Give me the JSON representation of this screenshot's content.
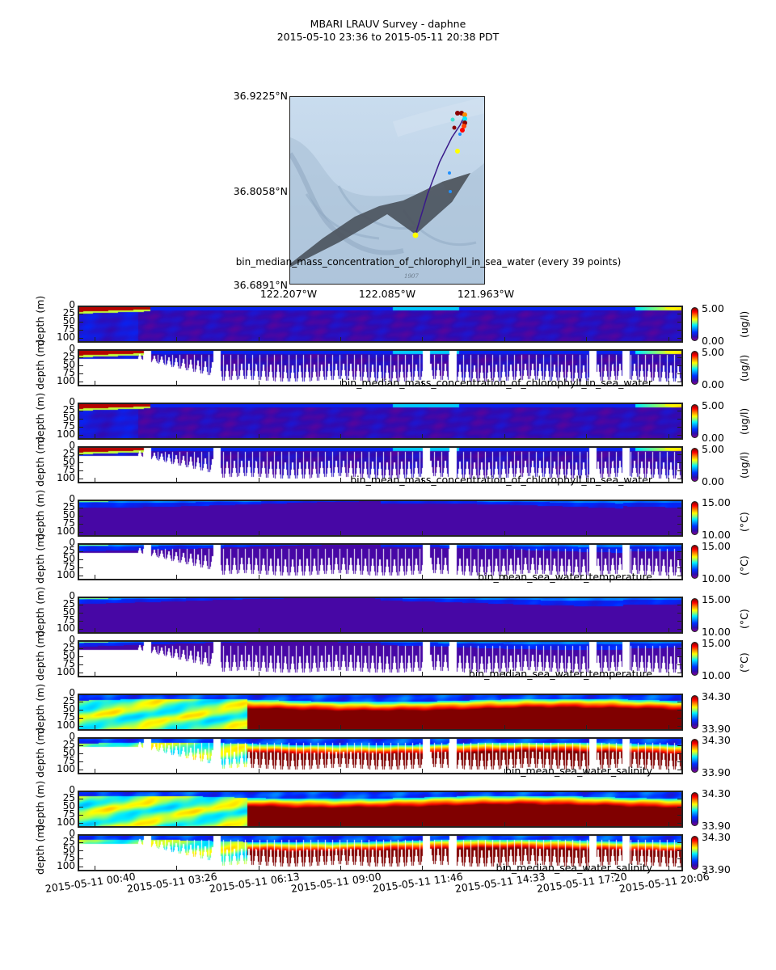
{
  "header": {
    "title": "MBARI LRAUV Survey - daphne",
    "subtitle": "2015-05-10 23:36  to  2015-05-11 20:38 PDT"
  },
  "map": {
    "lat_ticks": [
      "36.9225°N",
      "36.8058°N",
      "36.6891°N"
    ],
    "lon_ticks": [
      "122.207°W",
      "122.085°W",
      "121.963°W"
    ],
    "caption": "bin_median_mass_concentration_of_chlorophyll_in_sea_water (every 39 points)",
    "watermark": "1907",
    "colors": {
      "water": "#c5d9ec",
      "swath": "#4a525c",
      "track": "#3a1a8a"
    }
  },
  "chart_data": [
    {
      "type": "heatmap",
      "title": "",
      "variable": "bin_median_mass_concentration_of_chlorophyll_in_sea_water",
      "style": "gridded",
      "ylabel": "depth (m)",
      "yticks": [
        "0",
        "25",
        "50",
        "75",
        "100"
      ],
      "ylim": [
        0,
        115
      ],
      "colorbar": {
        "min": "0.00",
        "max": "5.00",
        "unit": "(ug/l)"
      },
      "colormap": "jet"
    },
    {
      "type": "heatmap",
      "title": "bin_median_mass_concentration_of_chlorophyll_in_sea_water",
      "variable": "bin_median_mass_concentration_of_chlorophyll_in_sea_water",
      "style": "profiles",
      "ylabel": "depth (m)",
      "yticks": [
        "0",
        "25",
        "50",
        "75",
        "100"
      ],
      "ylim": [
        0,
        115
      ],
      "colorbar": {
        "min": "0.00",
        "max": "5.00",
        "unit": "(ug/l)"
      },
      "colormap": "jet"
    },
    {
      "type": "heatmap",
      "title": "",
      "variable": "bin_mean_mass_concentration_of_chlorophyll_in_sea_water",
      "style": "gridded",
      "ylabel": "depth (m)",
      "yticks": [
        "0",
        "25",
        "50",
        "75",
        "100"
      ],
      "ylim": [
        0,
        115
      ],
      "colorbar": {
        "min": "0.00",
        "max": "5.00",
        "unit": "(ug/l)"
      },
      "colormap": "jet"
    },
    {
      "type": "heatmap",
      "title": "bin_mean_mass_concentration_of_chlorophyll_in_sea_water",
      "variable": "bin_mean_mass_concentration_of_chlorophyll_in_sea_water",
      "style": "profiles",
      "ylabel": "depth (m)",
      "yticks": [
        "0",
        "25",
        "50",
        "75",
        "100"
      ],
      "ylim": [
        0,
        115
      ],
      "colorbar": {
        "min": "0.00",
        "max": "5.00",
        "unit": "(ug/l)"
      },
      "colormap": "jet"
    },
    {
      "type": "heatmap",
      "title": "",
      "variable": "bin_mean_sea_water_temperature",
      "style": "gridded",
      "ylabel": "depth (m)",
      "yticks": [
        "0",
        "25",
        "50",
        "75",
        "100"
      ],
      "ylim": [
        0,
        115
      ],
      "colorbar": {
        "min": "10.00",
        "max": "15.00",
        "unit": "(°C)"
      },
      "colormap": "jet"
    },
    {
      "type": "heatmap",
      "title": "bin_mean_sea_water_temperature",
      "variable": "bin_mean_sea_water_temperature",
      "style": "profiles",
      "ylabel": "depth (m)",
      "yticks": [
        "0",
        "25",
        "50",
        "75",
        "100"
      ],
      "ylim": [
        0,
        115
      ],
      "colorbar": {
        "min": "10.00",
        "max": "15.00",
        "unit": "(°C)"
      },
      "colormap": "jet"
    },
    {
      "type": "heatmap",
      "title": "",
      "variable": "bin_median_sea_water_temperature",
      "style": "gridded",
      "ylabel": "depth (m)",
      "yticks": [
        "0",
        "25",
        "50",
        "75",
        "100"
      ],
      "ylim": [
        0,
        115
      ],
      "colorbar": {
        "min": "10.00",
        "max": "15.00",
        "unit": "(°C)"
      },
      "colormap": "jet"
    },
    {
      "type": "heatmap",
      "title": "bin_median_sea_water_temperature",
      "variable": "bin_median_sea_water_temperature",
      "style": "profiles",
      "ylabel": "depth (m)",
      "yticks": [
        "0",
        "25",
        "50",
        "75",
        "100"
      ],
      "ylim": [
        0,
        115
      ],
      "colorbar": {
        "min": "10.00",
        "max": "15.00",
        "unit": "(°C)"
      },
      "colormap": "jet"
    },
    {
      "type": "heatmap",
      "title": "",
      "variable": "bin_mean_sea_water_salinity",
      "style": "gridded",
      "ylabel": "depth (m)",
      "yticks": [
        "0",
        "25",
        "50",
        "75",
        "100"
      ],
      "ylim": [
        0,
        115
      ],
      "colorbar": {
        "min": "33.90",
        "max": "34.30",
        "unit": ""
      },
      "colormap": "jet"
    },
    {
      "type": "heatmap",
      "title": "bin_mean_sea_water_salinity",
      "variable": "bin_mean_sea_water_salinity",
      "style": "profiles",
      "ylabel": "depth (m)",
      "yticks": [
        "0",
        "25",
        "50",
        "75",
        "100"
      ],
      "ylim": [
        0,
        115
      ],
      "colorbar": {
        "min": "33.90",
        "max": "34.30",
        "unit": ""
      },
      "colormap": "jet"
    },
    {
      "type": "heatmap",
      "title": "",
      "variable": "bin_median_sea_water_salinity",
      "style": "gridded",
      "ylabel": "depth (m)",
      "yticks": [
        "0",
        "25",
        "50",
        "75",
        "100"
      ],
      "ylim": [
        0,
        115
      ],
      "colorbar": {
        "min": "33.90",
        "max": "34.30",
        "unit": ""
      },
      "colormap": "jet"
    },
    {
      "type": "heatmap",
      "title": "bin_median_sea_water_salinity",
      "variable": "bin_median_sea_water_salinity",
      "style": "profiles",
      "ylabel": "depth (m)",
      "yticks": [
        "0",
        "25",
        "50",
        "75",
        "100"
      ],
      "ylim": [
        0,
        115
      ],
      "colorbar": {
        "min": "33.90",
        "max": "34.30",
        "unit": ""
      },
      "colormap": "jet"
    }
  ],
  "xaxis": {
    "tick_labels": [
      "2015-05-11 00:40",
      "2015-05-11 03:26",
      "2015-05-11 06:13",
      "2015-05-11 09:00",
      "2015-05-11 11:46",
      "2015-05-11 14:33",
      "2015-05-11 17:20",
      "2015-05-11 20:06"
    ],
    "range": [
      "2015-05-10 23:36",
      "2015-05-11 20:38"
    ]
  }
}
